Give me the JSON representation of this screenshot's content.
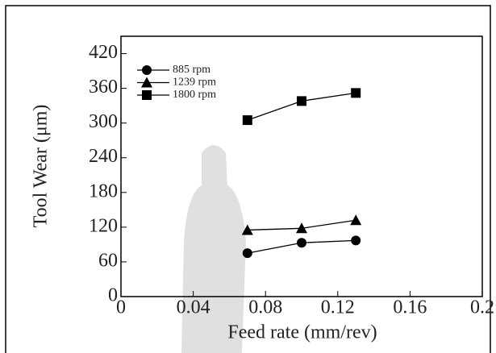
{
  "chart_data": {
    "type": "line",
    "x_label": "Feed rate (mm/rev)",
    "y_label": "Tool Wear (μm)",
    "xlim": [
      0,
      0.2
    ],
    "xticks": [
      0,
      0.04,
      0.08,
      0.12,
      0.16,
      0.2
    ],
    "ylim": [
      0,
      450
    ],
    "yticks": [
      0,
      60,
      120,
      180,
      240,
      300,
      360,
      420
    ],
    "grid": false,
    "legend": "upper left",
    "series": [
      {
        "name": "885 rpm",
        "color": "#000000",
        "marker": "circle",
        "x": [
          0.07,
          0.1,
          0.13
        ],
        "values": [
          75,
          93,
          97
        ]
      },
      {
        "name": "1239 rpm",
        "color": "#000000",
        "marker": "triangle",
        "x": [
          0.07,
          0.1,
          0.13
        ],
        "values": [
          115,
          118,
          132
        ]
      },
      {
        "name": "1800 rpm",
        "color": "#000000",
        "marker": "square",
        "x": [
          0.07,
          0.1,
          0.13
        ],
        "values": [
          305,
          338,
          352
        ]
      }
    ]
  }
}
